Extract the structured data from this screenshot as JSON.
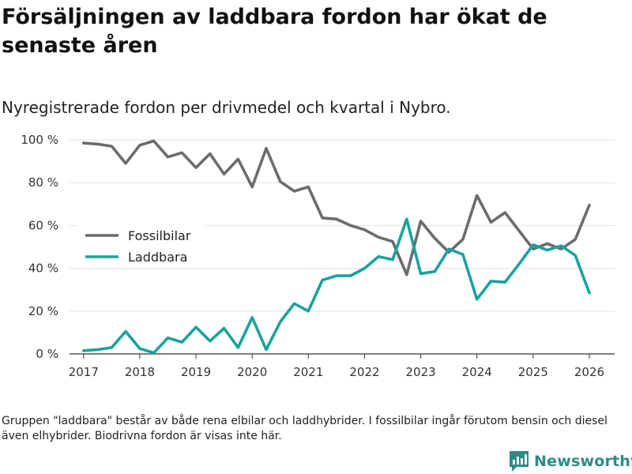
{
  "title": "Försäljningen av laddbara fordon har ökat de senaste åren",
  "subtitle": "Nyregistrerade fordon per drivmedel och kvartal i Nybro.",
  "footnote": "Gruppen \"laddbara\" består av både rena elbilar och laddhybrider. I fossilbilar ingår förutom bensin och diesel även elhybrider. Biodrivna fordon är visas inte här.",
  "brand": {
    "name": "Newsworthy",
    "icon": "newsworthy-logo-icon",
    "color": "#2e8b85"
  },
  "chart_data": {
    "type": "line",
    "title": "Försäljningen av laddbara fordon har ökat de senaste åren",
    "subtitle": "Nyregistrerade fordon per drivmedel och kvartal i Nybro.",
    "xlabel": "",
    "ylabel": "",
    "xlim": [
      2016.75,
      2026.45
    ],
    "ylim": [
      0,
      100
    ],
    "yticks": [
      0,
      20,
      40,
      60,
      80,
      100
    ],
    "ytick_labels": [
      "0 %",
      "20 %",
      "40 %",
      "60 %",
      "80 %",
      "100 %"
    ],
    "xticks": [
      2017,
      2018,
      2019,
      2020,
      2021,
      2022,
      2023,
      2024,
      2025,
      2026
    ],
    "xtick_labels": [
      "2017",
      "2018",
      "2019",
      "2020",
      "2021",
      "2022",
      "2023",
      "2024",
      "2025",
      "2026"
    ],
    "grid": true,
    "legend_position": "middle-left",
    "x": [
      2017.0,
      2017.25,
      2017.5,
      2017.75,
      2018.0,
      2018.25,
      2018.5,
      2018.75,
      2019.0,
      2019.25,
      2019.5,
      2019.75,
      2020.0,
      2020.25,
      2020.5,
      2020.75,
      2021.0,
      2021.25,
      2021.5,
      2021.75,
      2022.0,
      2022.25,
      2022.5,
      2022.75,
      2023.0,
      2023.25,
      2023.5,
      2023.75,
      2024.0,
      2024.25,
      2024.5,
      2024.75,
      2025.0,
      2025.25,
      2025.5,
      2025.75,
      2026.0
    ],
    "series": [
      {
        "name": "Fossilbilar",
        "color": "#6b6b70",
        "values": [
          98.5,
          98,
          97,
          89,
          97.5,
          99.5,
          92,
          94,
          87,
          93.5,
          84,
          91,
          78,
          96,
          80.5,
          76,
          78,
          63.5,
          63,
          60,
          58,
          54.5,
          52.5,
          37,
          62,
          54,
          47.5,
          53.5,
          74,
          61.5,
          66,
          57.5,
          49,
          51.5,
          49,
          53.5,
          69.5
        ]
      },
      {
        "name": "Laddbara",
        "color": "#1aa39a",
        "values": [
          1.5,
          2,
          3,
          10.5,
          2.5,
          0.5,
          7.5,
          5.5,
          12.5,
          6,
          12,
          3,
          17,
          2,
          15,
          23.5,
          20,
          34.5,
          36.5,
          36.5,
          40,
          45.5,
          44,
          63,
          37.5,
          38.5,
          49,
          46.5,
          25.5,
          34,
          33.5,
          42,
          51,
          48.5,
          50.5,
          46,
          28.5
        ]
      }
    ]
  }
}
